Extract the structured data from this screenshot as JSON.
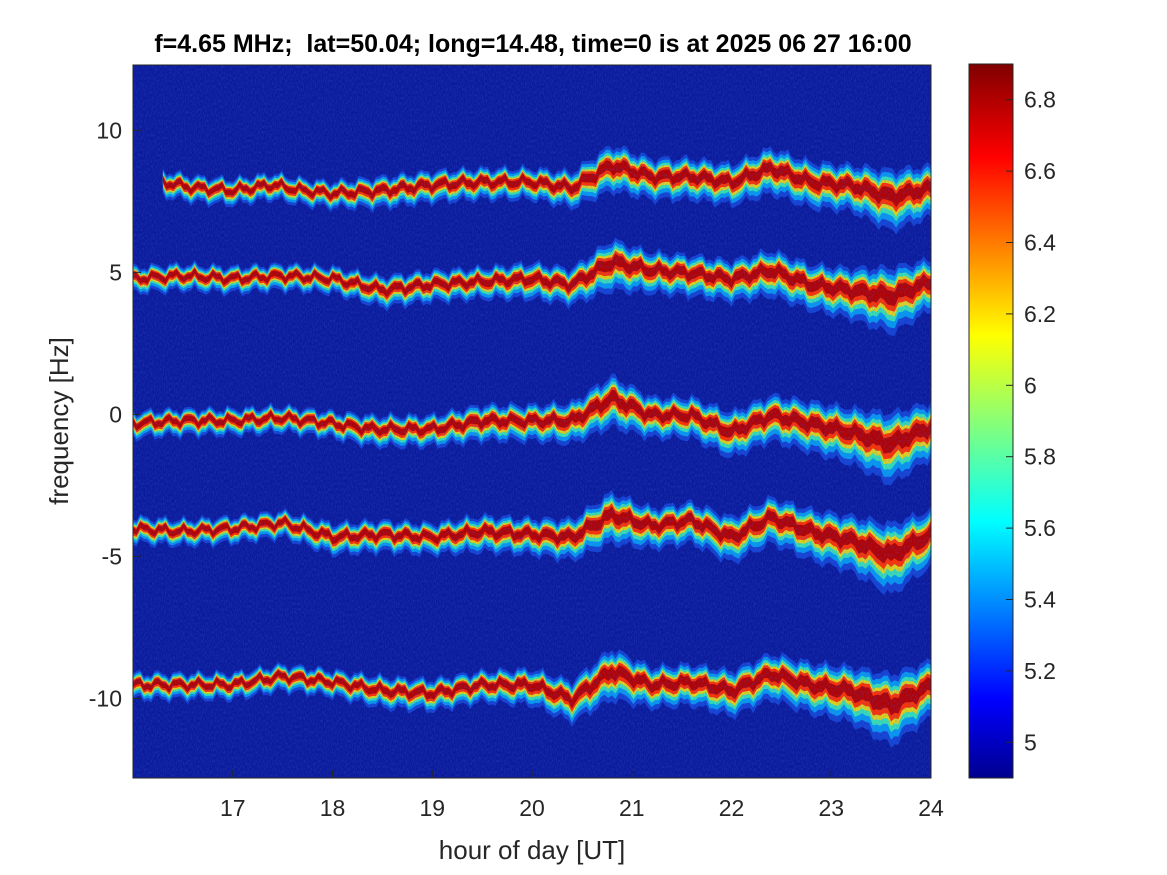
{
  "chart_data": {
    "type": "heatmap",
    "title": "f=4.65 MHz;  lat=50.04; long=14.48, time=0 is at 2025 06 27 16:00",
    "xlabel": "hour of day [UT]",
    "ylabel": "frequency [Hz]",
    "xlim": [
      16,
      24
    ],
    "ylim": [
      -12.8,
      12.3
    ],
    "xticks": [
      17,
      18,
      19,
      20,
      21,
      22,
      23,
      24
    ],
    "xtick_labels": [
      "17",
      "18",
      "19",
      "20",
      "21",
      "22",
      "23",
      "24"
    ],
    "yticks": [
      10,
      5,
      0,
      -5,
      -10
    ],
    "ytick_labels": [
      "10",
      "5",
      "0",
      "-5",
      "-10"
    ],
    "colorbar": {
      "colormap": "jet",
      "clim": [
        4.9,
        6.9
      ],
      "ticks": [
        6.8,
        6.6,
        6.4,
        6.2,
        6,
        5.8,
        5.6,
        5.4,
        5.2,
        5
      ],
      "tick_labels": [
        "6.8",
        "6.6",
        "6.4",
        "6.2",
        "6",
        "5.8",
        "5.6",
        "5.4",
        "5.2",
        "5"
      ]
    },
    "background_value": 4.9,
    "background_color": "#0a1a9a",
    "series": [
      {
        "start_hour": 16.3,
        "x": [
          16.3,
          16.6,
          17.0,
          17.4,
          17.7,
          18.0,
          18.5,
          19.0,
          19.5,
          20.0,
          20.4,
          20.8,
          21.2,
          21.6,
          22.0,
          22.4,
          22.8,
          23.2,
          23.6,
          24.0
        ],
        "y": [
          8.2,
          8.0,
          7.9,
          8.1,
          7.9,
          7.8,
          7.9,
          8.1,
          8.2,
          8.2,
          8.0,
          8.8,
          8.4,
          8.4,
          8.2,
          8.7,
          8.2,
          8.1,
          7.7,
          8.0
        ],
        "width": [
          0.5,
          0.5,
          0.5,
          0.5,
          0.5,
          0.5,
          0.6,
          0.6,
          0.6,
          0.6,
          0.7,
          0.9,
          0.8,
          0.8,
          0.8,
          0.9,
          0.9,
          0.9,
          1.2,
          1.0
        ]
      },
      {
        "start_hour": 16.0,
        "x": [
          16.0,
          16.5,
          17.0,
          17.5,
          18.0,
          18.5,
          19.0,
          19.5,
          20.0,
          20.4,
          20.8,
          21.2,
          21.6,
          22.0,
          22.4,
          22.8,
          23.2,
          23.6,
          24.0
        ],
        "y": [
          4.8,
          4.9,
          4.8,
          4.9,
          4.8,
          4.4,
          4.6,
          4.7,
          4.8,
          4.6,
          5.4,
          5.1,
          5.0,
          4.8,
          5.1,
          4.6,
          4.4,
          4.2,
          4.7
        ],
        "width": [
          0.5,
          0.5,
          0.5,
          0.5,
          0.5,
          0.6,
          0.6,
          0.6,
          0.7,
          0.7,
          1.0,
          0.8,
          0.8,
          0.8,
          0.9,
          0.9,
          1.0,
          1.3,
          1.0
        ]
      },
      {
        "start_hour": 16.0,
        "x": [
          16.0,
          16.5,
          17.0,
          17.5,
          18.0,
          18.4,
          19.0,
          19.5,
          20.0,
          20.4,
          20.8,
          21.2,
          21.6,
          22.0,
          22.4,
          22.8,
          23.2,
          23.6,
          24.0
        ],
        "y": [
          -0.3,
          -0.2,
          -0.2,
          -0.1,
          -0.3,
          -0.5,
          -0.5,
          -0.2,
          -0.2,
          -0.2,
          0.6,
          0.0,
          0.0,
          -0.6,
          0.0,
          -0.3,
          -0.6,
          -1.0,
          -0.4
        ],
        "width": [
          0.5,
          0.5,
          0.5,
          0.5,
          0.5,
          0.6,
          0.6,
          0.7,
          0.7,
          0.8,
          1.0,
          0.8,
          0.8,
          0.9,
          0.9,
          1.0,
          1.1,
          1.4,
          1.1
        ]
      },
      {
        "start_hour": 16.0,
        "x": [
          16.0,
          16.5,
          17.0,
          17.5,
          18.0,
          18.5,
          19.0,
          19.5,
          20.0,
          20.4,
          20.8,
          21.2,
          21.6,
          22.0,
          22.4,
          22.8,
          23.2,
          23.6,
          24.0
        ],
        "y": [
          -4.0,
          -4.1,
          -4.0,
          -3.8,
          -4.3,
          -4.2,
          -4.3,
          -4.1,
          -4.2,
          -4.3,
          -3.5,
          -3.9,
          -3.7,
          -4.3,
          -3.6,
          -4.1,
          -4.4,
          -4.9,
          -4.2
        ],
        "width": [
          0.5,
          0.5,
          0.5,
          0.5,
          0.6,
          0.6,
          0.6,
          0.7,
          0.7,
          0.8,
          1.0,
          0.8,
          0.8,
          0.9,
          0.9,
          1.0,
          1.1,
          1.4,
          1.1
        ]
      },
      {
        "start_hour": 16.0,
        "x": [
          16.0,
          16.5,
          17.0,
          17.5,
          18.0,
          18.5,
          19.0,
          19.5,
          20.0,
          20.4,
          20.8,
          21.2,
          21.6,
          22.0,
          22.4,
          22.8,
          23.2,
          23.6,
          24.0
        ],
        "y": [
          -9.5,
          -9.5,
          -9.5,
          -9.2,
          -9.4,
          -9.7,
          -9.8,
          -9.5,
          -9.5,
          -10.0,
          -9.0,
          -9.5,
          -9.4,
          -9.7,
          -9.1,
          -9.5,
          -9.7,
          -10.2,
          -9.5
        ],
        "width": [
          0.5,
          0.5,
          0.5,
          0.5,
          0.5,
          0.6,
          0.6,
          0.6,
          0.7,
          0.8,
          1.0,
          0.8,
          0.8,
          0.9,
          0.9,
          1.0,
          1.1,
          1.4,
          1.1
        ]
      }
    ]
  }
}
